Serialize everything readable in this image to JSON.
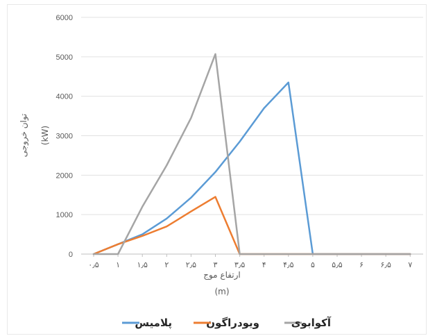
{
  "chart_data": {
    "type": "line",
    "title": "",
    "ylabel": "توان خروجی",
    "ylabel_unit": "(kW)",
    "xlabel": "ارتفاع موج",
    "xlabel_unit": "(m)",
    "ylim": [
      0,
      6000
    ],
    "y_ticks": [
      "0",
      "1000",
      "2000",
      "3000",
      "4000",
      "5000",
      "6000"
    ],
    "y_tick_values": [
      0,
      1000,
      2000,
      3000,
      4000,
      5000,
      6000
    ],
    "xlim": [
      0.5,
      7
    ],
    "x_ticks": [
      "۰٫۵",
      "۱",
      "۱٫۵",
      "۲",
      "۲٫۵",
      "۳",
      "۳٫۵",
      "۴",
      "۴٫۵",
      "۵",
      "۵٫۵",
      "۶",
      "۶٫۵",
      "۷"
    ],
    "x_tick_values": [
      0.5,
      1,
      1.5,
      2,
      2.5,
      3,
      3.5,
      4,
      4.5,
      5,
      5.5,
      6,
      6.5,
      7
    ],
    "grid": "horizontal",
    "legend_position": "bottom",
    "series": [
      {
        "name": "پلامیس",
        "color": "#5b9bd5",
        "x": [
          0.5,
          1,
          1.5,
          2,
          2.5,
          3,
          3.5,
          4,
          4.5,
          5,
          5.5,
          6,
          6.5,
          7
        ],
        "values": [
          0,
          250,
          500,
          900,
          1430,
          2080,
          2850,
          3700,
          4350,
          0,
          0,
          0,
          0,
          0
        ]
      },
      {
        "name": "ویودراگون",
        "color": "#ed7d31",
        "x": [
          0.5,
          1,
          1.5,
          2,
          2.5,
          3,
          3.5,
          4,
          4.5,
          5,
          5.5,
          6,
          6.5,
          7
        ],
        "values": [
          0,
          250,
          460,
          700,
          1080,
          1450,
          0,
          0,
          0,
          0,
          0,
          0,
          0,
          0
        ]
      },
      {
        "name": "آکوابوی",
        "color": "#a5a5a5",
        "x": [
          0.5,
          1,
          1.5,
          2,
          2.5,
          3,
          3.5,
          4,
          4.5,
          5,
          5.5,
          6,
          6.5,
          7
        ],
        "values": [
          0,
          0,
          1200,
          2250,
          3450,
          5070,
          0,
          0,
          0,
          0,
          0,
          0,
          0,
          0
        ]
      }
    ]
  }
}
